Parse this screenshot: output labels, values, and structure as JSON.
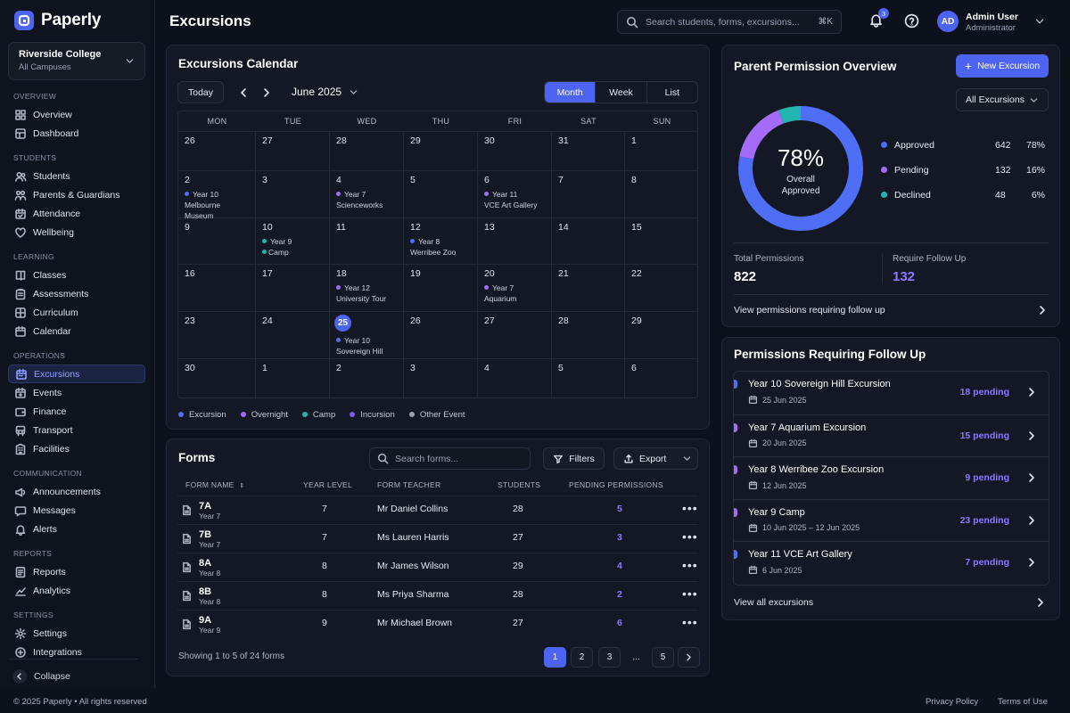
{
  "app": {
    "name": "Paperly"
  },
  "org": {
    "name": "Riverside College",
    "sub": "All Campuses"
  },
  "sidebar": {
    "sections": [
      {
        "title": "OVERVIEW",
        "items": [
          {
            "label": "Overview",
            "icon": "grid-icon"
          },
          {
            "label": "Dashboard",
            "icon": "dashboard-icon"
          }
        ]
      },
      {
        "title": "STUDENTS",
        "items": [
          {
            "label": "Students",
            "icon": "users-icon"
          },
          {
            "label": "Parents & Guardians",
            "icon": "family-icon"
          },
          {
            "label": "Attendance",
            "icon": "calendar-check-icon"
          },
          {
            "label": "Wellbeing",
            "icon": "heart-icon"
          }
        ]
      },
      {
        "title": "LEARNING",
        "items": [
          {
            "label": "Classes",
            "icon": "book-icon"
          },
          {
            "label": "Assessments",
            "icon": "clipboard-icon"
          },
          {
            "label": "Curriculum",
            "icon": "layers-icon"
          },
          {
            "label": "Calendar",
            "icon": "calendar-icon"
          }
        ]
      },
      {
        "title": "OPERATIONS",
        "items": [
          {
            "label": "Excursions",
            "icon": "bus-icon",
            "active": true
          },
          {
            "label": "Events",
            "icon": "ticket-icon"
          },
          {
            "label": "Finance",
            "icon": "wallet-icon"
          },
          {
            "label": "Transport",
            "icon": "truck-icon"
          },
          {
            "label": "Facilities",
            "icon": "building-icon"
          }
        ]
      },
      {
        "title": "COMMUNICATION",
        "items": [
          {
            "label": "Announcements",
            "icon": "megaphone-icon"
          },
          {
            "label": "Messages",
            "icon": "message-icon"
          },
          {
            "label": "Alerts",
            "icon": "alert-icon"
          }
        ]
      },
      {
        "title": "REPORTS",
        "items": [
          {
            "label": "Reports",
            "icon": "report-icon"
          },
          {
            "label": "Analytics",
            "icon": "chart-icon"
          }
        ]
      },
      {
        "title": "SETTINGS",
        "items": [
          {
            "label": "Settings",
            "icon": "gear-icon"
          },
          {
            "label": "Integrations",
            "icon": "plug-icon"
          }
        ]
      }
    ],
    "collapse_label": "Collapse"
  },
  "header": {
    "title": "Excursions",
    "search_placeholder": "Search students, forms, excursions...",
    "shortcut": "⌘K",
    "notifications": "3",
    "user": {
      "initials": "AD",
      "name": "Admin User",
      "role": "Administrator"
    }
  },
  "calendar": {
    "title": "Excursions Calendar",
    "today_label": "Today",
    "month_label": "June 2025",
    "views": [
      "Month",
      "Week",
      "List"
    ],
    "active_view": "Month",
    "weekdays": [
      "MON",
      "TUE",
      "WED",
      "THU",
      "FRI",
      "SAT",
      "SUN"
    ],
    "today": "25",
    "weeks": [
      [
        {
          "d": "26"
        },
        {
          "d": "27"
        },
        {
          "d": "28"
        },
        {
          "d": "29"
        },
        {
          "d": "30"
        },
        {
          "d": "31"
        },
        {
          "d": "1"
        }
      ],
      [
        {
          "d": "2",
          "ev": {
            "line1": "Year 10",
            "line2": "Melbourne Museum",
            "color": "#4d6ef5"
          }
        },
        {
          "d": "3"
        },
        {
          "d": "4",
          "ev": {
            "line1": "Year 7",
            "line2": "Scienceworks",
            "color": "#a36bf7"
          }
        },
        {
          "d": "5"
        },
        {
          "d": "6",
          "ev": {
            "line1": "Year 11",
            "line2": "VCE Art Gallery",
            "color": "#a36bf7"
          }
        },
        {
          "d": "7"
        },
        {
          "d": "8"
        }
      ],
      [
        {
          "d": "9"
        },
        {
          "d": "10",
          "ev": {
            "line1": "Year 9",
            "line2": "Camp",
            "color": "#22b5b0",
            "dot2": true
          }
        },
        {
          "d": "11"
        },
        {
          "d": "12",
          "ev": {
            "line1": "Year 8",
            "line2": "Werribee Zoo",
            "color": "#4d6ef5"
          }
        },
        {
          "d": "13"
        },
        {
          "d": "14"
        },
        {
          "d": "15"
        }
      ],
      [
        {
          "d": "16"
        },
        {
          "d": "17"
        },
        {
          "d": "18",
          "ev": {
            "line1": "Year 12",
            "line2": "University Tour",
            "color": "#a36bf7"
          }
        },
        {
          "d": "19"
        },
        {
          "d": "20",
          "ev": {
            "line1": "Year 7",
            "line2": "Aquarium",
            "color": "#a36bf7"
          }
        },
        {
          "d": "21"
        },
        {
          "d": "22"
        }
      ],
      [
        {
          "d": "23"
        },
        {
          "d": "24"
        },
        {
          "d": "25",
          "today": true,
          "ev": {
            "line1": "Year 10",
            "line2": "Sovereign Hill",
            "color": "#4d6ef5"
          }
        },
        {
          "d": "26"
        },
        {
          "d": "27"
        },
        {
          "d": "28"
        },
        {
          "d": "29"
        }
      ],
      [
        {
          "d": "30"
        },
        {
          "d": "1"
        },
        {
          "d": "2"
        },
        {
          "d": "3"
        },
        {
          "d": "4"
        },
        {
          "d": "5"
        },
        {
          "d": "6"
        }
      ]
    ],
    "legend": [
      {
        "label": "Excursion",
        "color": "#4d6ef5"
      },
      {
        "label": "Overnight",
        "color": "#a36bf7"
      },
      {
        "label": "Camp",
        "color": "#22b5b0"
      },
      {
        "label": "Incursion",
        "color": "#7a5cf0"
      },
      {
        "label": "Other Event",
        "color": "#9aa1b2"
      }
    ]
  },
  "forms": {
    "title": "Forms",
    "search_placeholder": "Search forms...",
    "filters_label": "Filters",
    "export_label": "Export",
    "columns": [
      "FORM NAME",
      "YEAR LEVEL",
      "FORM TEACHER",
      "STUDENTS",
      "PENDING PERMISSIONS"
    ],
    "rows": [
      {
        "name": "7A",
        "sub": "Year 7",
        "year": "7",
        "teacher": "Mr Daniel Collins",
        "students": "28",
        "pending": "5"
      },
      {
        "name": "7B",
        "sub": "Year 7",
        "year": "7",
        "teacher": "Ms Lauren Harris",
        "students": "27",
        "pending": "3"
      },
      {
        "name": "8A",
        "sub": "Year 8",
        "year": "8",
        "teacher": "Mr James Wilson",
        "students": "29",
        "pending": "4"
      },
      {
        "name": "8B",
        "sub": "Year 8",
        "year": "8",
        "teacher": "Ms Priya Sharma",
        "students": "28",
        "pending": "2"
      },
      {
        "name": "9A",
        "sub": "Year 9",
        "year": "9",
        "teacher": "Mr Michael Brown",
        "students": "27",
        "pending": "6"
      }
    ],
    "showing": "Showing 1 to 5 of 24 forms",
    "pages": [
      "1",
      "2",
      "3",
      "...",
      "5"
    ],
    "current_page": "1"
  },
  "permissions": {
    "title": "Parent Permission Overview",
    "new_button": "New Excursion",
    "filter": "All Excursions",
    "overall_pct": "78%",
    "overall_label_1": "Overall",
    "overall_label_2": "Approved",
    "breakdown": [
      {
        "label": "Approved",
        "count": "642",
        "pct": "78%",
        "value": 642,
        "color": "#4d6ef5"
      },
      {
        "label": "Pending",
        "count": "132",
        "pct": "16%",
        "value": 132,
        "color": "#a36bf7"
      },
      {
        "label": "Declined",
        "count": "48",
        "pct": "6%",
        "value": 48,
        "color": "#22b5b0"
      }
    ],
    "total_label": "Total Permissions",
    "total_value": "822",
    "follow_label": "Require Follow Up",
    "follow_value": "132",
    "follow_link": "View permissions requiring follow up"
  },
  "followup": {
    "title": "Permissions Requiring Follow Up",
    "items": [
      {
        "name": "Year 10 Sovereign Hill Excursion",
        "date": "25 Jun 2025",
        "pending": "18 pending",
        "color": "#4d6ef5"
      },
      {
        "name": "Year 7 Aquarium Excursion",
        "date": "20 Jun 2025",
        "pending": "15 pending",
        "color": "#a36bf7"
      },
      {
        "name": "Year 8 Werribee Zoo Excursion",
        "date": "12 Jun 2025",
        "pending": "9 pending",
        "color": "#a36bf7"
      },
      {
        "name": "Year 9 Camp",
        "date": "10 Jun 2025 – 12 Jun 2025",
        "pending": "23 pending",
        "color": "#a36bf7"
      },
      {
        "name": "Year 11 VCE Art Gallery",
        "date": "6 Jun 2025",
        "pending": "7 pending",
        "color": "#4d6ef5"
      }
    ],
    "view_all": "View all excursions"
  },
  "footer": {
    "copyright": "© 2025 Paperly • All rights reserved",
    "privacy": "Privacy Policy",
    "terms": "Terms of Use"
  }
}
